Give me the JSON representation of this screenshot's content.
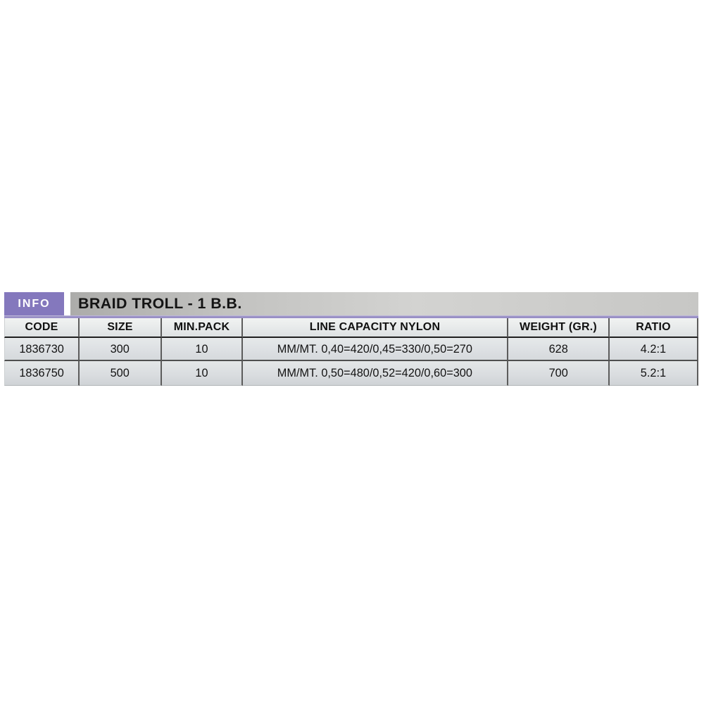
{
  "header": {
    "info_label": "INFO",
    "title": "BRAID TROLL - 1 B.B."
  },
  "colors": {
    "badge_purple": "#8478bd",
    "divider_purple": "#8d84bd",
    "title_band_gray": "#c2c2c0",
    "cell_silver": "#dde0e3",
    "grid_line": "#5c5c5c",
    "text": "#131313"
  },
  "table": {
    "columns": [
      "CODE",
      "SIZE",
      "MIN.PACK",
      "LINE CAPACITY NYLON",
      "WEIGHT (GR.)",
      "RATIO"
    ],
    "rows": [
      [
        "1836730",
        "300",
        "10",
        "MM/MT. 0,40=420/0,45=330/0,50=270",
        "628",
        "4.2:1"
      ],
      [
        "1836750",
        "500",
        "10",
        "MM/MT. 0,50=480/0,52=420/0,60=300",
        "700",
        "5.2:1"
      ]
    ]
  }
}
